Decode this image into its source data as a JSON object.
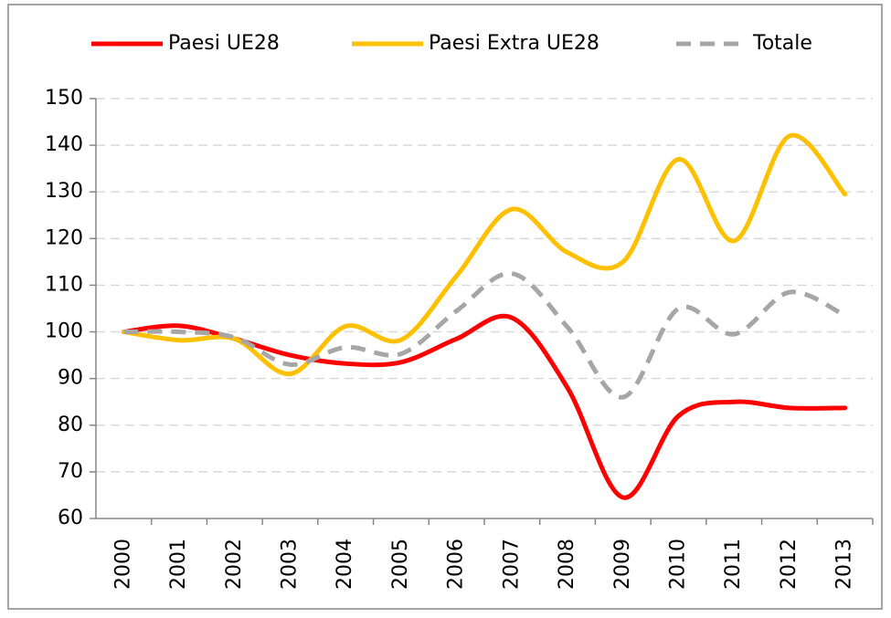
{
  "chart_data": {
    "type": "line",
    "categories": [
      "2000",
      "2001",
      "2002",
      "2003",
      "2004",
      "2005",
      "2006",
      "2007",
      "2008",
      "2009",
      "2010",
      "2011",
      "2012",
      "2013"
    ],
    "series": [
      {
        "name": "Paesi UE28",
        "color": "#ff0000",
        "dashed": false,
        "values": [
          100,
          101.3,
          98.5,
          95,
          93.2,
          93.5,
          98.5,
          103,
          88,
          64.5,
          82,
          85,
          83.7,
          83.7
        ]
      },
      {
        "name": "Paesi Extra UE28",
        "color": "#ffc000",
        "dashed": false,
        "values": [
          100,
          98.2,
          98.5,
          91,
          101.2,
          98.3,
          112,
          126.3,
          117,
          115,
          137,
          119.5,
          142,
          129.5
        ]
      },
      {
        "name": "Totale",
        "color": "#a6a6a6",
        "dashed": true,
        "values": [
          100,
          100,
          98.8,
          93,
          96.7,
          95.3,
          104.5,
          112.5,
          101,
          86,
          105,
          99.5,
          108.5,
          103.5
        ]
      }
    ],
    "ylim": [
      60,
      150
    ],
    "yticks": [
      60,
      70,
      80,
      90,
      100,
      110,
      120,
      130,
      140,
      150
    ],
    "grid": true,
    "smooth": true,
    "legend": "top"
  }
}
